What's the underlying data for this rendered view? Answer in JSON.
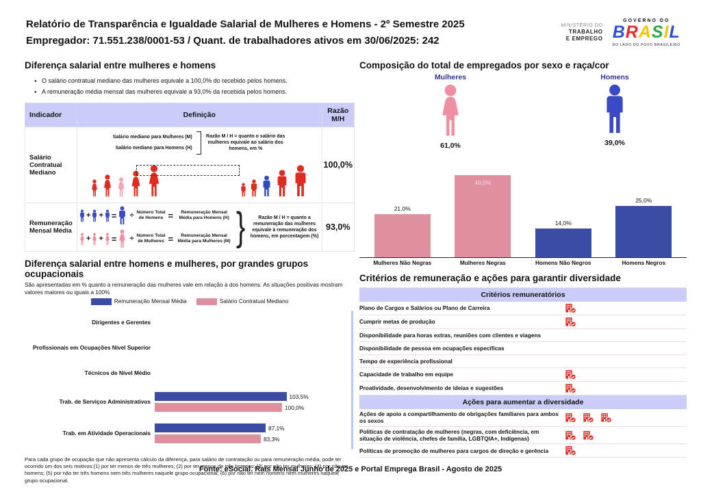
{
  "header": {
    "title": "Relatório de Transparência e Igualdade Salarial de Mulheres e Homens - 2º Semestre 2025",
    "subtitle": "Empregador: 71.551.238/0001-53 / Quant. de trabalhadores ativos em 30/06/2025: 242",
    "ministry": {
      "line1": "MINISTÉRIO DO",
      "line2": "TRABALHO",
      "line3": "E EMPREGO"
    },
    "gov": {
      "top": "GOVERNO DO",
      "brand": "BRASIL",
      "bottom": "DO LADO DO POVO BRASILEIRO"
    }
  },
  "salary_diff": {
    "title": "Diferença salarial entre mulheres e homens",
    "bullets": [
      "O salário contratual mediano das mulheres equivale a 100,0% do recebido pelos homens.",
      "A remuneração média mensal das mulheres equivale a 93,0% da recebida pelos homens."
    ],
    "table_headers": [
      "Indicador",
      "Definição",
      "Razão M/H"
    ],
    "row1": {
      "indicator": "Salário Contratual Mediano",
      "line1": "Salário mediano para Mulheres (M)",
      "line2": "Salário mediano para Homens (H)",
      "note": "Razão M / H = quanto o salário das mulheres equivale ao salário dos homens, em %",
      "ratio": "100,0%"
    },
    "row2": {
      "indicator": "Remuneração Mensal Média",
      "plus_sign": "+",
      "equals_sign": "=",
      "divide_sign": "÷",
      "men_divisor": "Número Total de Homens",
      "men_result": "Remuneração Mensal Média para Homens (H)",
      "women_divisor": "Número Total de Mulheres",
      "women_result": "Remuneração Mensal Média para Mulheres (M)",
      "note": "Razão M / H = quanto a remuneração das mulheres equivale à remuneração dos homens, em porcentagem (%)",
      "ratio": "93,0%"
    }
  },
  "composition": {
    "title": "Composição do total de empregados por sexo e raça/cor",
    "female_label": "Mulheres",
    "female_pct": "61,0%",
    "male_label": "Homens",
    "male_pct": "39,0%"
  },
  "occupational": {
    "title": "Diferença salarial entre homens e mulheres, por grandes grupos ocupacionais",
    "subtitle": "São apresentadas em % quanto a remuneração das mulheres vale em relação à dos homens. As situações positivas mostram valores maiores ou iguais a 100%",
    "footnote": "Para cada grupo de ocupação que não apresenta cálculo da diferença, para salário de contratação ou para remuneração média, pode ter ocorrido um dos seis motivos:(1) por ter menos de três mulheres; (2) por ter menos de três homens; (3) por não ter mulheres; (4) por não ter homens; (5) por não ter três homens nem três mulheres naquele grupo ocupacional; (6) por não ter nem homens nem mulheres naquele grupo ocupacional."
  },
  "criteria": {
    "title": "Critérios de remuneração e ações para garantir diversidade",
    "remuneration_header": "Critérios remuneratórios",
    "remuneration_rows": [
      {
        "label": "Plano de Cargos e Salários ou Plano de Carreira",
        "count": 1
      },
      {
        "label": "Cumprir metas de produção",
        "count": 1
      },
      {
        "label": "Disponibilidade para horas extras, reuniões com clientes e viagens",
        "count": 0
      },
      {
        "label": "Disponibilidade de pessoa em ocupações específicas",
        "count": 0
      },
      {
        "label": "Tempo de experiência profissional",
        "count": 0
      },
      {
        "label": "Capacidade de trabalho em equipe",
        "count": 1
      },
      {
        "label": "Proatividade, desenvolvimento de ideias e sugestões",
        "count": 1
      }
    ],
    "diversity_header": "Ações para aumentar a diversidade",
    "diversity_rows": [
      {
        "label": "Ações de apoio a compartilhamento de obrigações familiares para ambos os sexos",
        "count": 3
      },
      {
        "label": "Políticas de contratação de mulheres (negras, com deficiência, em situação de violência, chefes de família, LGBTQIA+, Indígenas)",
        "count": 2
      },
      {
        "label": "Políticas de promoção de mulheres para cargos de direção e gerência",
        "count": 1
      }
    ]
  },
  "footer": "Fonte: eSocial. Rais Mensal Junho de 2025 e Portal Emprega Brasil - Agosto de 2025",
  "colors": {
    "bar_pink": "#E08F9F",
    "bar_blue": "#3B4DA2",
    "female_icon": "#EF8FA4",
    "male_icon": "#3A49C6",
    "figure_red": "#E02B20",
    "figure_pink_highlight": "#F2A6B8",
    "figure_blue_highlight": "#2F49C0",
    "criteria_icon_red": "#DD2822",
    "header_band": "#C9CDF7",
    "label_indigo": "#2E3192",
    "brasil_letters": [
      "#2B4FD7",
      "#EA2A2A",
      "#F5C400",
      "#30A54A",
      "#F5C400",
      "#2B4FD7"
    ]
  },
  "chart_data": [
    {
      "id": "composition-by-sex-race",
      "type": "bar",
      "title": "Composição do total de empregados por sexo e raça/cor",
      "categories": [
        "Mulheres Não Negras",
        "Mulheres Negras",
        "Homens Não Negros",
        "Homens Negros"
      ],
      "values": [
        21.0,
        40.0,
        14.0,
        25.0
      ],
      "value_labels": [
        "21,0%",
        "40,0%",
        "14,0%",
        "25,0%"
      ],
      "bar_colors": [
        "#E08F9F",
        "#E08F9F",
        "#3B4DA2",
        "#3B4DA2"
      ],
      "ylim": [
        0,
        42
      ],
      "grid": false,
      "legend_position": "none",
      "totals": {
        "Mulheres": "61,0%",
        "Homens": "39,0%"
      }
    },
    {
      "id": "pay-gap-by-occupational-group",
      "type": "bar",
      "orientation": "horizontal",
      "title": "Diferença salarial entre homens e mulheres, por grandes grupos ocupacionais",
      "categories": [
        "Dirigentes e Gerentes",
        "Profissionais em Ocupações Nível Superior",
        "Técnicos de Nível Médio",
        "Trab. de Serviços Administrativos",
        "Trab. em Atividade Operacionais"
      ],
      "series": [
        {
          "name": "Remuneração Mensal Média",
          "color": "#3B4DA2",
          "values": [
            null,
            null,
            null,
            103.5,
            87.1
          ],
          "labels": [
            "",
            "",
            "",
            "103,5%",
            "87,1%"
          ]
        },
        {
          "name": "Salário Contratual Mediano",
          "color": "#E08F9F",
          "values": [
            null,
            null,
            null,
            100.0,
            83.3
          ],
          "labels": [
            "",
            "",
            "",
            "100,0%",
            "83,3%"
          ]
        }
      ],
      "xlim": [
        0,
        130
      ],
      "grid": false,
      "legend_position": "top"
    }
  ]
}
